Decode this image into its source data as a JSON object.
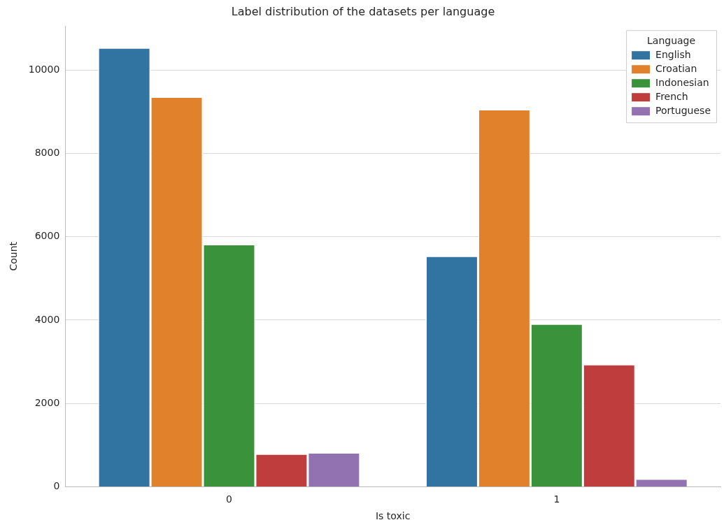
{
  "chart_data": {
    "type": "bar",
    "title": "Label distribution of the datasets per language",
    "xlabel": "Is toxic",
    "ylabel": "Count",
    "legend_title": "Language",
    "categories": [
      "0",
      "1"
    ],
    "series": [
      {
        "name": "English",
        "color": "#3274a1",
        "values": [
          10540,
          5540
        ]
      },
      {
        "name": "Croatian",
        "color": "#e1812c",
        "values": [
          9360,
          9060
        ]
      },
      {
        "name": "Indonesian",
        "color": "#3a923a",
        "values": [
          5820,
          3910
        ]
      },
      {
        "name": "French",
        "color": "#c03d3e",
        "values": [
          790,
          2940
        ]
      },
      {
        "name": "Portuguese",
        "color": "#9372b2",
        "values": [
          820,
          190
        ]
      }
    ],
    "ylim": [
      0,
      11060
    ],
    "yticks": [
      0,
      2000,
      4000,
      6000,
      8000,
      10000
    ],
    "grid": "y",
    "legend": "top right"
  }
}
